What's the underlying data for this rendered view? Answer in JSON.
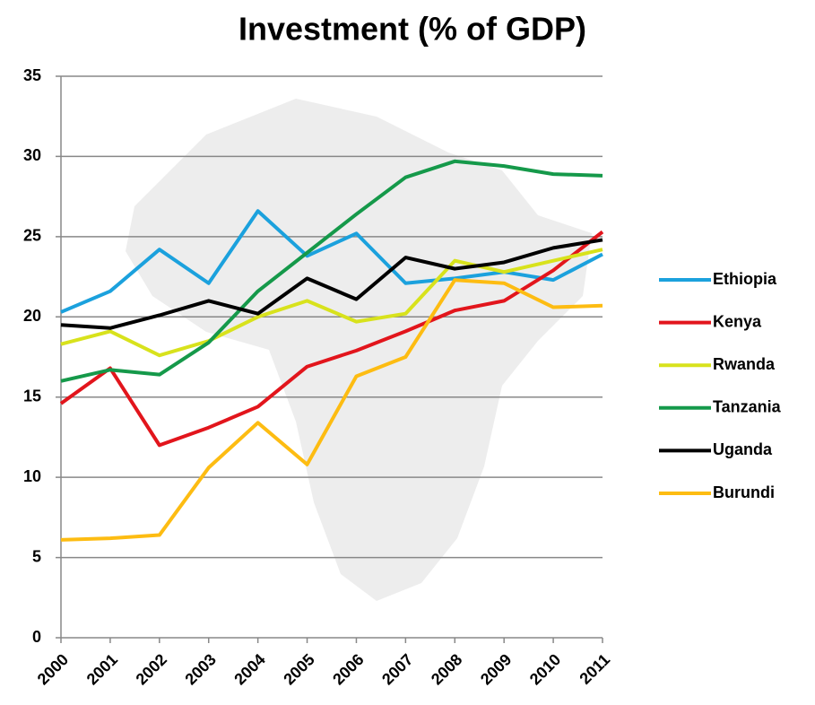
{
  "chart_data": {
    "type": "line",
    "title": "Investment (% of GDP)",
    "categories": [
      "2000",
      "2001",
      "2002",
      "2003",
      "2004",
      "2005",
      "2006",
      "2007",
      "2008",
      "2009",
      "2010",
      "2011"
    ],
    "series": [
      {
        "name": "Ethiopia",
        "color": "#1ba1dd",
        "values": [
          20.3,
          21.6,
          24.2,
          22.1,
          26.6,
          23.8,
          25.2,
          22.1,
          22.4,
          22.8,
          22.3,
          23.9
        ]
      },
      {
        "name": "Kenya",
        "color": "#e2151c",
        "values": [
          14.6,
          16.8,
          12.0,
          13.1,
          14.4,
          16.9,
          17.9,
          19.1,
          20.4,
          21.0,
          22.9,
          25.3
        ]
      },
      {
        "name": "Rwanda",
        "color": "#d8e21c",
        "values": [
          18.3,
          19.1,
          17.6,
          18.5,
          20.0,
          21.0,
          19.7,
          20.2,
          23.5,
          22.8,
          23.5,
          24.2
        ]
      },
      {
        "name": "Tanzania",
        "color": "#15994a",
        "values": [
          16.0,
          16.7,
          16.4,
          18.4,
          21.6,
          24.0,
          26.4,
          28.7,
          29.7,
          29.4,
          28.9,
          28.8
        ]
      },
      {
        "name": "Uganda",
        "color": "#000000",
        "values": [
          19.5,
          19.3,
          20.1,
          21.0,
          20.2,
          22.4,
          21.1,
          23.7,
          23.0,
          23.4,
          24.3,
          24.8
        ]
      },
      {
        "name": "Burundi",
        "color": "#fdbc12",
        "values": [
          6.1,
          6.2,
          6.4,
          10.6,
          13.4,
          10.8,
          16.3,
          17.5,
          22.3,
          22.1,
          20.6,
          20.7
        ]
      }
    ],
    "ylim": [
      0,
      35
    ],
    "yticks": [
      0,
      5,
      10,
      15,
      20,
      25,
      30,
      35
    ],
    "grid": true,
    "legend": "right"
  }
}
